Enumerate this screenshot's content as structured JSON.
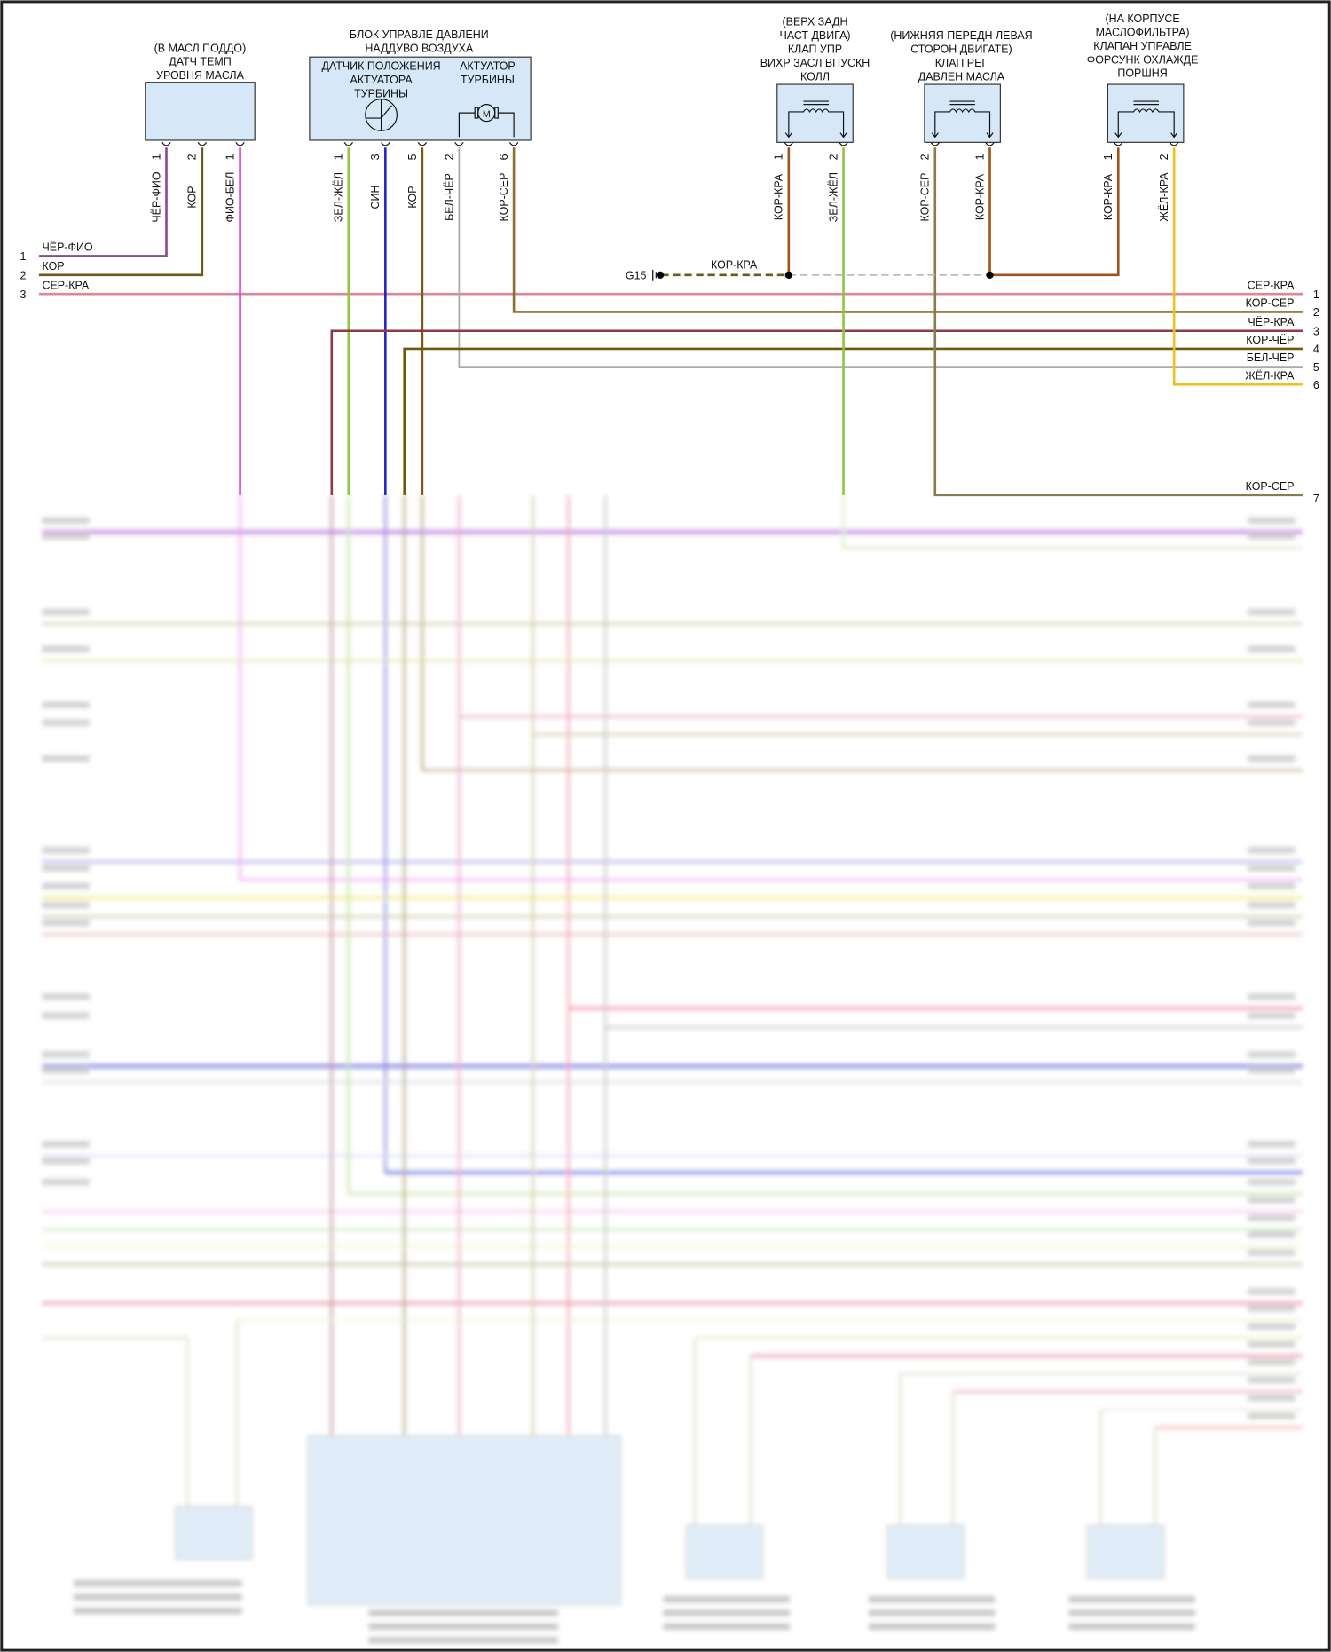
{
  "components": {
    "oil_sensor": {
      "title": [
        "(В МАСЛ ПОДДО)",
        "ДАТЧ ТЕМП",
        "УРОВНЯ МАСЛА"
      ],
      "pins": [
        {
          "num": "1",
          "wire": "ЧЁР-ФИО"
        },
        {
          "num": "2",
          "wire": "КОР"
        },
        {
          "num": "1",
          "wire": "ФИО-БЕЛ"
        }
      ]
    },
    "boost_unit": {
      "title": [
        "БЛОК УПРАВЛЕ ДАВЛЕНИ",
        "НАДДУВО ВОЗДУХА"
      ],
      "sensor_label": [
        "ДАТЧИК ПОЛОЖЕНИЯ",
        "АКТУАТОРА",
        "ТУРБИНЫ"
      ],
      "actuator_label": [
        "АКТУАТОР",
        "ТУРБИНЫ"
      ],
      "motor_symbol": "M",
      "pins": [
        {
          "num": "1",
          "wire": "ЗЕЛ-ЖЁЛ"
        },
        {
          "num": "3",
          "wire": "СИН"
        },
        {
          "num": "5",
          "wire": "КОР"
        },
        {
          "num": "2",
          "wire": "БЕЛ-ЧЁР"
        },
        {
          "num": "6",
          "wire": "КОР-СЕР"
        }
      ]
    },
    "swirl_valve": {
      "title": [
        "(ВЕРХ ЗАДН",
        "ЧАСТ ДВИГА)",
        "КЛАП УПР",
        "ВИХР ЗАСЛ ВПУСКН",
        "КОЛЛ"
      ],
      "pins": [
        {
          "num": "1",
          "wire": "КОР-КРА"
        },
        {
          "num": "2",
          "wire": "ЗЕЛ-ЖЁЛ"
        }
      ]
    },
    "oil_pressure_valve": {
      "title": [
        "(НИЖНЯЯ ПЕРЕДН ЛЕВАЯ",
        "СТОРОН ДВИГАТЕ)",
        "КЛАП РЕГ",
        "ДАВЛЕН МАСЛА"
      ],
      "pins": [
        {
          "num": "2",
          "wire": "КОР-СЕР"
        },
        {
          "num": "1",
          "wire": "КОР-КРА"
        }
      ]
    },
    "piston_cooling_valve": {
      "title": [
        "(НА КОРПУСЕ",
        "МАСЛОФИЛЬТРА)",
        "КЛАПАН УПРАВЛЕ",
        "ФОРСУНК ОХЛАЖДЕ",
        "ПОРШНЯ"
      ],
      "pins": [
        {
          "num": "1",
          "wire": "КОР-КРА"
        },
        {
          "num": "2",
          "wire": "ЖЁЛ-КРА"
        }
      ]
    }
  },
  "ground": {
    "label": "G15",
    "wire": "КОР-КРА"
  },
  "left_connector": [
    {
      "num": "1",
      "wire": "ЧЁР-ФИО"
    },
    {
      "num": "2",
      "wire": "КОР"
    },
    {
      "num": "3",
      "wire": "СЕР-КРА"
    }
  ],
  "right_connector": [
    {
      "num": "1",
      "wire": "СЕР-КРА"
    },
    {
      "num": "2",
      "wire": "КОР-СЕР"
    },
    {
      "num": "3",
      "wire": "ЧЁР-КРА"
    },
    {
      "num": "4",
      "wire": "КОР-ЧЁР"
    },
    {
      "num": "5",
      "wire": "БЕЛ-ЧЁР"
    },
    {
      "num": "6",
      "wire": "ЖЁЛ-КРА"
    },
    {
      "num": "7",
      "wire": "КОР-СЕР"
    }
  ],
  "colors": {
    "box_fill": "#d6e8f8",
    "blue": "#2424c8",
    "green": "#8dc63f",
    "magenta": "#e040e0",
    "yellow": "#f0c020"
  }
}
